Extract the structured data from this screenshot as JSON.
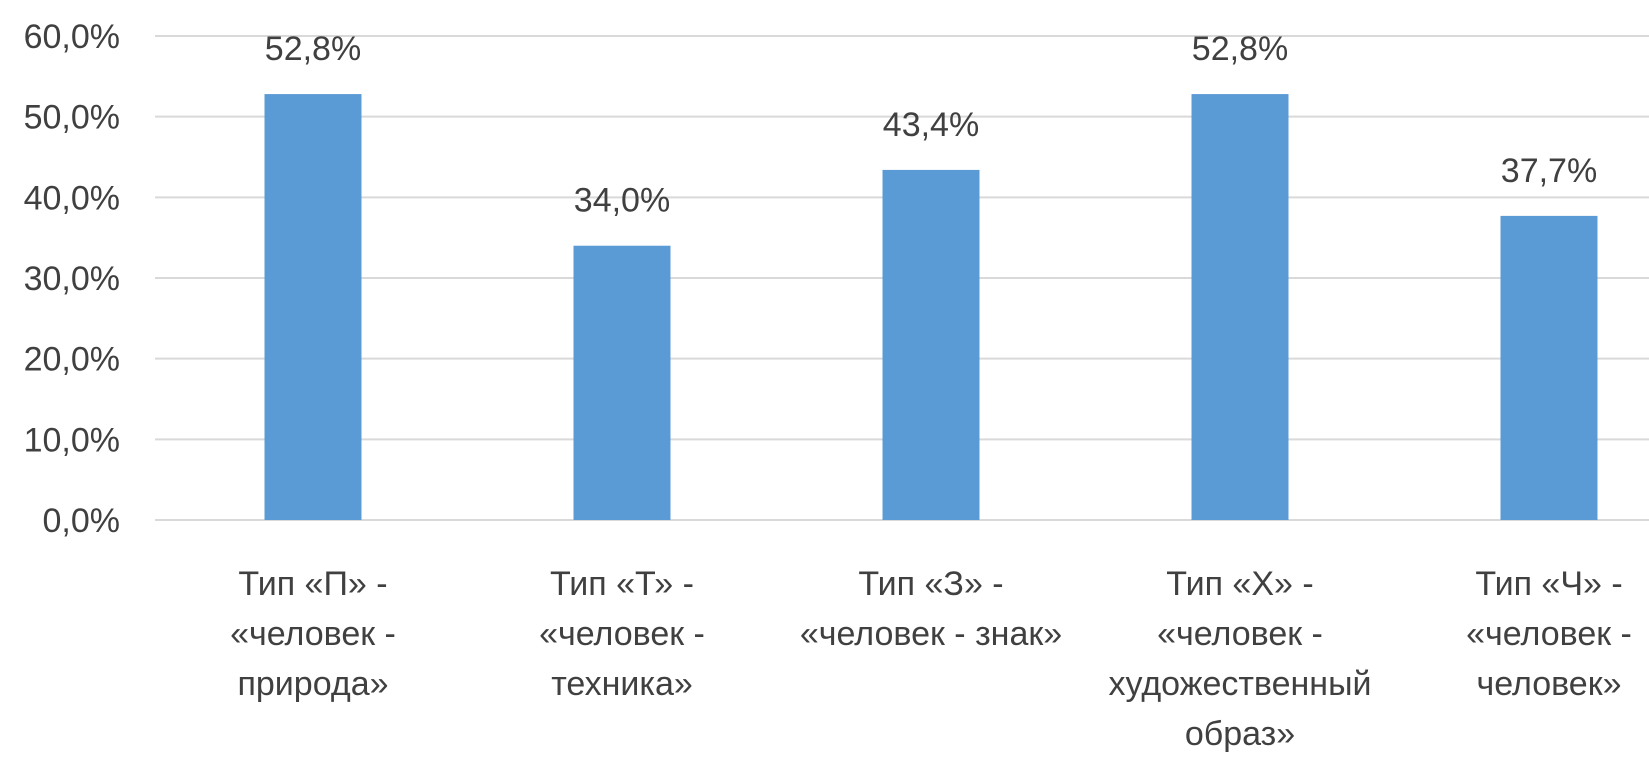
{
  "chart_data": {
    "type": "bar",
    "categories": [
      [
        "Тип «П» -",
        "«человек -",
        "природа»"
      ],
      [
        "Тип «Т» -",
        "«человек -",
        "техника»"
      ],
      [
        "Тип «З» -",
        "«человек - знак»"
      ],
      [
        "Тип «Х» -",
        "«человек -",
        "художественный",
        "образ»"
      ],
      [
        "Тип «Ч» -",
        "«человек -",
        "человек»"
      ]
    ],
    "values": [
      52.8,
      34.0,
      43.4,
      52.8,
      37.7
    ],
    "data_labels": [
      "52,8%",
      "34,0%",
      "43,4%",
      "52,8%",
      "37,7%"
    ],
    "yticks": [
      0,
      10,
      20,
      30,
      40,
      50,
      60
    ],
    "ytick_labels": [
      "0,0%",
      "10,0%",
      "20,0%",
      "30,0%",
      "40,0%",
      "50,0%",
      "60,0%"
    ],
    "ylim": [
      0,
      60
    ],
    "grid": true,
    "legend": "none",
    "title": "",
    "xlabel": "",
    "ylabel": "",
    "colors": {
      "bar": "#5b9bd5",
      "grid": "#d9d9d9",
      "text": "#404040"
    }
  }
}
